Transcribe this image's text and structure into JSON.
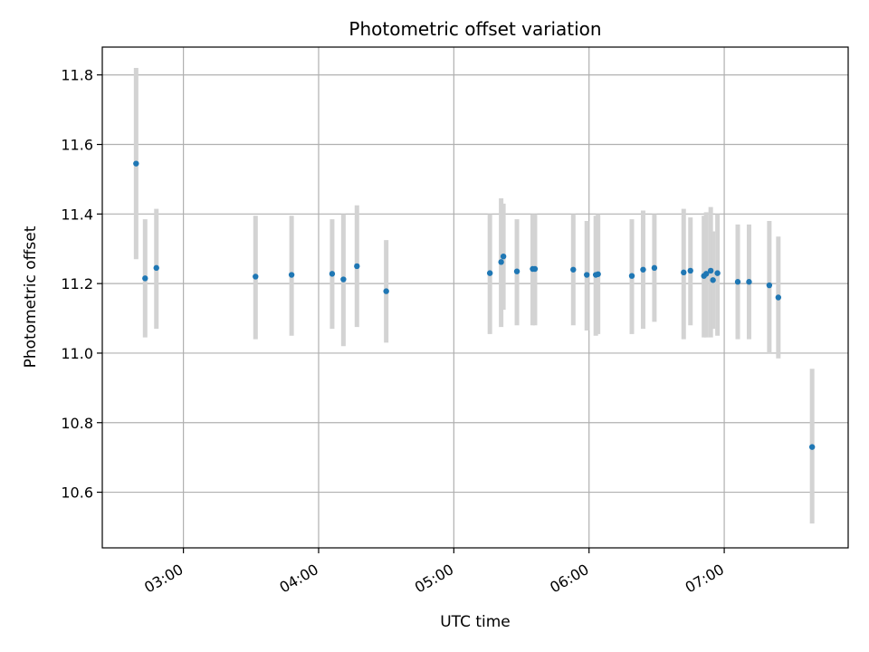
{
  "chart_data": {
    "type": "scatter",
    "title": "Photometric offset variation",
    "xlabel": "UTC time",
    "ylabel": "Photometric offset",
    "grid": true,
    "xlim": [
      "02:24",
      "07:55"
    ],
    "ylim": [
      10.44,
      11.88
    ],
    "x_ticks": [
      "03:00",
      "04:00",
      "05:00",
      "06:00",
      "07:00"
    ],
    "y_ticks": [
      10.6,
      10.8,
      11.0,
      11.2,
      11.4,
      11.6,
      11.8
    ],
    "colors": {
      "point": "#1f77b4",
      "errorbar": "#d3d3d3",
      "grid": "#b0b0b0"
    },
    "series": [
      {
        "points": [
          {
            "x": "02:39",
            "y": 11.545,
            "lo": 11.27,
            "hi": 11.82
          },
          {
            "x": "02:43",
            "y": 11.215,
            "lo": 11.045,
            "hi": 11.385
          },
          {
            "x": "02:48",
            "y": 11.245,
            "lo": 11.07,
            "hi": 11.415
          },
          {
            "x": "03:32",
            "y": 11.22,
            "lo": 11.04,
            "hi": 11.395
          },
          {
            "x": "03:48",
            "y": 11.225,
            "lo": 11.05,
            "hi": 11.395
          },
          {
            "x": "04:06",
            "y": 11.228,
            "lo": 11.07,
            "hi": 11.385
          },
          {
            "x": "04:11",
            "y": 11.212,
            "lo": 11.02,
            "hi": 11.4
          },
          {
            "x": "04:17",
            "y": 11.25,
            "lo": 11.075,
            "hi": 11.425
          },
          {
            "x": "04:30",
            "y": 11.178,
            "lo": 11.03,
            "hi": 11.325
          },
          {
            "x": "05:16",
            "y": 11.23,
            "lo": 11.055,
            "hi": 11.4
          },
          {
            "x": "05:21",
            "y": 11.262,
            "lo": 11.075,
            "hi": 11.445
          },
          {
            "x": "05:22",
            "y": 11.278,
            "lo": 11.125,
            "hi": 11.43
          },
          {
            "x": "05:28",
            "y": 11.235,
            "lo": 11.08,
            "hi": 11.385
          },
          {
            "x": "05:35",
            "y": 11.242,
            "lo": 11.08,
            "hi": 11.4
          },
          {
            "x": "05:36",
            "y": 11.242,
            "lo": 11.08,
            "hi": 11.4
          },
          {
            "x": "05:53",
            "y": 11.24,
            "lo": 11.08,
            "hi": 11.4
          },
          {
            "x": "05:59",
            "y": 11.225,
            "lo": 11.065,
            "hi": 11.38
          },
          {
            "x": "06:03",
            "y": 11.225,
            "lo": 11.05,
            "hi": 11.395
          },
          {
            "x": "06:04",
            "y": 11.227,
            "lo": 11.055,
            "hi": 11.4
          },
          {
            "x": "06:19",
            "y": 11.222,
            "lo": 11.055,
            "hi": 11.385
          },
          {
            "x": "06:24",
            "y": 11.24,
            "lo": 11.07,
            "hi": 11.41
          },
          {
            "x": "06:29",
            "y": 11.245,
            "lo": 11.09,
            "hi": 11.4
          },
          {
            "x": "06:42",
            "y": 11.232,
            "lo": 11.04,
            "hi": 11.415
          },
          {
            "x": "06:45",
            "y": 11.237,
            "lo": 11.08,
            "hi": 11.39
          },
          {
            "x": "06:51",
            "y": 11.222,
            "lo": 11.045,
            "hi": 11.395
          },
          {
            "x": "06:52",
            "y": 11.228,
            "lo": 11.045,
            "hi": 11.405
          },
          {
            "x": "06:54",
            "y": 11.237,
            "lo": 11.045,
            "hi": 11.42
          },
          {
            "x": "06:55",
            "y": 11.21,
            "lo": 11.07,
            "hi": 11.35
          },
          {
            "x": "06:57",
            "y": 11.23,
            "lo": 11.05,
            "hi": 11.4
          },
          {
            "x": "07:06",
            "y": 11.205,
            "lo": 11.04,
            "hi": 11.37
          },
          {
            "x": "07:11",
            "y": 11.205,
            "lo": 11.04,
            "hi": 11.37
          },
          {
            "x": "07:20",
            "y": 11.195,
            "lo": 11.0,
            "hi": 11.38
          },
          {
            "x": "07:24",
            "y": 11.16,
            "lo": 10.985,
            "hi": 11.335
          },
          {
            "x": "07:39",
            "y": 10.73,
            "lo": 10.51,
            "hi": 10.955
          }
        ]
      }
    ]
  }
}
